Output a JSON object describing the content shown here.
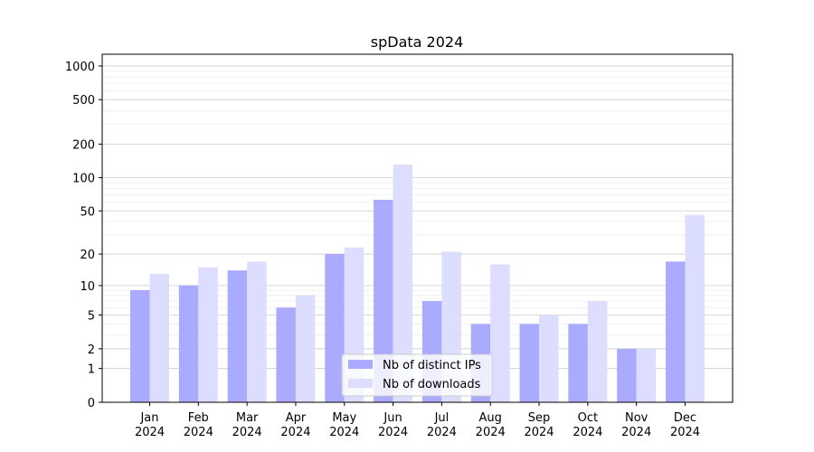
{
  "chart_data": {
    "type": "bar",
    "title": "spData 2024",
    "xlabel": "",
    "ylabel": "",
    "y_scale": "log10(1+y)",
    "ylim": [
      0,
      1300
    ],
    "yticks": [
      0,
      1,
      2,
      5,
      10,
      20,
      50,
      100,
      200,
      500,
      1000
    ],
    "grid": true,
    "legend_placement": "lower-center",
    "categories": [
      "Jan\n2024",
      "Feb\n2024",
      "Mar\n2024",
      "Apr\n2024",
      "May\n2024",
      "Jun\n2024",
      "Jul\n2024",
      "Aug\n2024",
      "Sep\n2024",
      "Oct\n2024",
      "Nov\n2024",
      "Dec\n2024"
    ],
    "series": [
      {
        "name": "Nb of distinct IPs",
        "color": "#aaaaff",
        "values": [
          9,
          10,
          14,
          6,
          20,
          63,
          7,
          4,
          4,
          4,
          2,
          17
        ]
      },
      {
        "name": "Nb of downloads",
        "color": "#ddddff",
        "values": [
          13,
          15,
          17,
          8,
          23,
          131,
          21,
          16,
          5,
          7,
          2,
          46
        ]
      }
    ]
  }
}
